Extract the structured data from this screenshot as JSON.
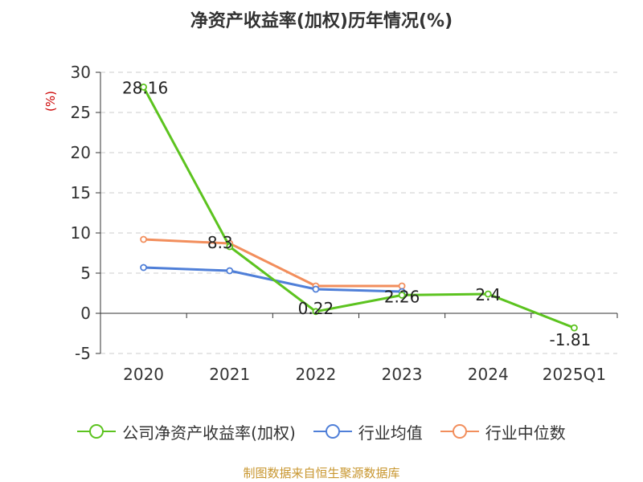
{
  "chart_data": {
    "type": "line",
    "title": "净资产收益率(加权)历年情况(%)",
    "ylabel": "(%)",
    "categories": [
      "2020",
      "2021",
      "2022",
      "2023",
      "2024",
      "2025Q1"
    ],
    "ylim": [
      -5,
      30
    ],
    "yticks": [
      -5,
      0,
      5,
      10,
      15,
      20,
      25,
      30
    ],
    "grid": true,
    "legend_position": "bottom",
    "series": [
      {
        "name": "公司净资产收益率(加权)",
        "color": "#5cc31f",
        "values": [
          28.16,
          8.3,
          0.22,
          2.26,
          2.4,
          -1.81
        ],
        "labels": [
          "28.16",
          "8.3",
          "0.22",
          "2.26",
          "2.4",
          "-1.81"
        ]
      },
      {
        "name": "行业均值",
        "color": "#4f7fd8",
        "values": [
          5.7,
          5.3,
          3.0,
          2.7,
          null,
          null
        ]
      },
      {
        "name": "行业中位数",
        "color": "#f28e5c",
        "values": [
          9.2,
          8.7,
          3.4,
          3.4,
          null,
          null
        ]
      }
    ]
  },
  "source": "制图数据来自恒生聚源数据库"
}
